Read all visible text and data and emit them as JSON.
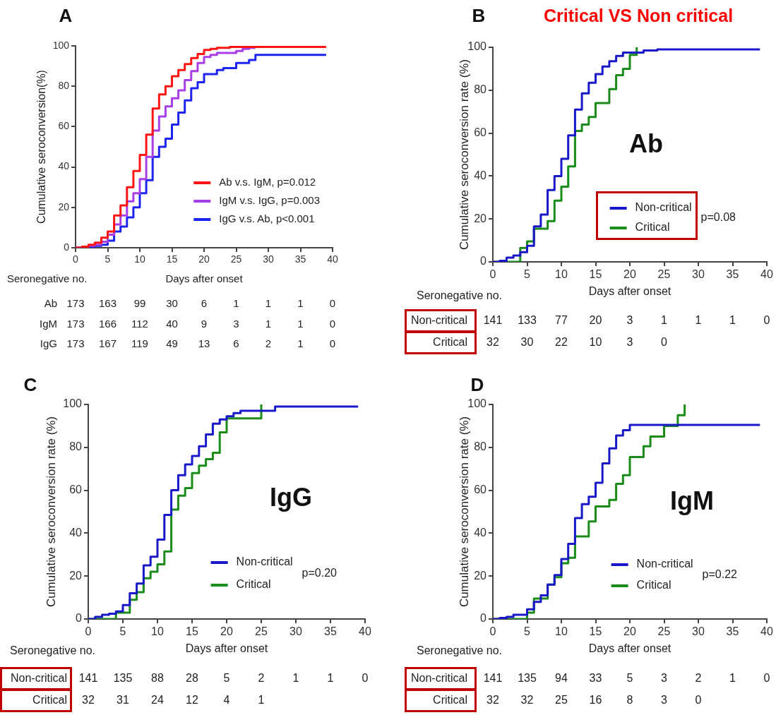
{
  "chart_data": [
    {
      "type": "step",
      "title": "A",
      "xlabel": "Days after onset",
      "ylabel": "Cumulative seroconversion(%)",
      "xlim": [
        0,
        40
      ],
      "xticks": [
        0,
        5,
        10,
        15,
        20,
        25,
        30,
        35,
        40
      ],
      "ylim": [
        0,
        100
      ],
      "yticks": [
        0,
        20,
        40,
        60,
        80,
        100
      ],
      "legend": "bottom right",
      "series": [
        {
          "name": "Ab v.s. IgM, p=0.012",
          "color": "#ff1414",
          "x": [
            0,
            1,
            2,
            3,
            4,
            5,
            6,
            7,
            8,
            9,
            10,
            11,
            12,
            13,
            14,
            15,
            16,
            17,
            18,
            19,
            20,
            21,
            22,
            24,
            39
          ],
          "values": [
            0,
            0.5,
            1.5,
            2.5,
            5,
            8,
            16,
            21,
            30,
            38,
            46,
            56,
            69,
            76,
            80,
            85,
            88,
            91,
            94,
            96,
            98,
            98.5,
            99,
            99.5,
            99.5
          ]
        },
        {
          "name": "IgM v.s. IgG, p=0.003",
          "color": "#a83ee6",
          "x": [
            0,
            1,
            2,
            3,
            4,
            5,
            6,
            7,
            8,
            9,
            10,
            11,
            12,
            13,
            14,
            15,
            16,
            17,
            18,
            19,
            20,
            21,
            22,
            25,
            26,
            27,
            28
          ],
          "values": [
            0,
            0.5,
            1,
            1.5,
            3,
            6.5,
            11.5,
            16,
            23,
            27,
            34,
            45,
            58,
            65,
            70,
            74,
            78,
            83,
            87.5,
            91.5,
            94.5,
            95.5,
            96.5,
            97.5,
            98.5,
            99,
            99
          ]
        },
        {
          "name": "IgG v.s. Ab, p<0.001",
          "color": "#1e24f0",
          "x": [
            0,
            2,
            3,
            4,
            5,
            6,
            7,
            8,
            9,
            10,
            11,
            12,
            13,
            14,
            15,
            16,
            17,
            18,
            19,
            20,
            22,
            23,
            25,
            27,
            28,
            39
          ],
          "values": [
            0,
            0.5,
            1,
            1.5,
            3.5,
            8,
            10.5,
            15,
            20,
            27,
            33.5,
            45,
            50,
            54,
            61,
            67,
            73,
            79,
            82,
            86,
            88,
            89,
            91.5,
            93,
            95.5,
            95.5
          ]
        }
      ],
      "annotations": [
        "Seronegative no.",
        "Ab 173 163 99 30 6 1 1 1 0",
        "IgM 173 166 112 40 9 3 1 1 0",
        "IgG 173 167 119 49 13 6 2 1 0"
      ]
    },
    {
      "type": "step",
      "title": "B",
      "subtitle": "Critical VS Non critical",
      "xlabel": "Days after onset",
      "ylabel": "Cumulative seroconversion rate (%)",
      "xlim": [
        0,
        40
      ],
      "xticks": [
        0,
        5,
        10,
        15,
        20,
        25,
        30,
        35,
        40
      ],
      "ylim": [
        0,
        100
      ],
      "yticks": [
        0,
        20,
        40,
        60,
        80,
        100
      ],
      "legend": "bottom right",
      "series": [
        {
          "name": "Non-critical",
          "color": "#1818c8",
          "x": [
            0,
            1,
            2,
            3,
            4,
            5,
            6,
            7,
            8,
            9,
            10,
            11,
            12,
            13,
            14,
            15,
            16,
            17,
            18,
            19,
            22,
            24,
            39
          ],
          "values": [
            0,
            0.5,
            2,
            3,
            4.5,
            7.5,
            16.5,
            22,
            33.5,
            40,
            48,
            59,
            71,
            78.5,
            83.5,
            87.5,
            91,
            93.5,
            96,
            97.5,
            98.5,
            99,
            99
          ]
        },
        {
          "name": "Critical",
          "color": "#1a8c1a",
          "x": [
            0,
            4,
            5,
            6,
            8,
            9,
            10,
            11,
            12,
            13,
            14,
            15,
            17,
            18,
            19,
            20,
            21
          ],
          "values": [
            0,
            6.5,
            9.5,
            15.5,
            19,
            28.5,
            35,
            44.5,
            61,
            64,
            67.5,
            74,
            80.5,
            87,
            90,
            96.5,
            100
          ]
        }
      ],
      "annotations": [
        "Ab",
        "p=0.08",
        "Seronegative no.",
        "Non-critical 141 133 77 20 3 1 1 1 0",
        "Critical 32 30 22 10 3 0"
      ]
    },
    {
      "type": "step",
      "title": "C",
      "xlabel": "Days after onset",
      "ylabel": "Cumulative seroconversion rate (%)",
      "xlim": [
        0,
        40
      ],
      "xticks": [
        0,
        5,
        10,
        15,
        20,
        25,
        30,
        35,
        40
      ],
      "ylim": [
        0,
        100
      ],
      "yticks": [
        0,
        20,
        40,
        60,
        80,
        100
      ],
      "legend": "bottom right",
      "series": [
        {
          "name": "Non-critical",
          "color": "#1818c8",
          "x": [
            0,
            1,
            2,
            3,
            4,
            5,
            6,
            7,
            8,
            9,
            10,
            11,
            12,
            13,
            14,
            15,
            16,
            17,
            18,
            19,
            20,
            21,
            22,
            27,
            39
          ],
          "values": [
            0,
            1,
            2,
            2.5,
            3.5,
            6.5,
            12,
            16.5,
            25,
            29,
            37,
            48.5,
            60,
            67,
            72,
            76,
            80.5,
            86,
            91,
            93,
            94.5,
            96,
            97,
            99,
            99
          ]
        },
        {
          "name": "Critical",
          "color": "#1a8c1a",
          "x": [
            0,
            4,
            6,
            7,
            8,
            9,
            10,
            11,
            12,
            13,
            14,
            15,
            16,
            17,
            18,
            19,
            20,
            25
          ],
          "values": [
            0,
            3,
            9,
            12.5,
            19,
            22,
            25.5,
            31.5,
            51,
            57.5,
            61,
            68,
            71.5,
            74.5,
            77.5,
            87,
            93.5,
            100
          ]
        }
      ],
      "annotations": [
        "IgG",
        "p=0.20",
        "Seronegative no.",
        "Non-critical 141 135 88 28 5 2 1 1 0",
        "Critical 32 31 24 12 4 1"
      ]
    },
    {
      "type": "step",
      "title": "D",
      "xlabel": "Days after onset",
      "ylabel": "Cumulative seroconversion rate (%)",
      "xlim": [
        0,
        40
      ],
      "xticks": [
        0,
        5,
        10,
        15,
        20,
        25,
        30,
        35,
        40
      ],
      "ylim": [
        0,
        100
      ],
      "yticks": [
        0,
        20,
        40,
        60,
        80,
        100
      ],
      "legend": "bottom right",
      "series": [
        {
          "name": "Non-critical",
          "color": "#1818c8",
          "x": [
            0,
            1,
            2,
            3,
            5,
            6,
            7,
            8,
            9,
            10,
            11,
            12,
            13,
            14,
            15,
            16,
            17,
            18,
            19,
            20,
            39
          ],
          "values": [
            0,
            0.5,
            1,
            2,
            4.5,
            8,
            11,
            16,
            20.5,
            28,
            35,
            47,
            53.5,
            57,
            63.5,
            72.5,
            79.5,
            85.5,
            88,
            90.5,
            90.5
          ]
        },
        {
          "name": "Critical",
          "color": "#1a8c1a",
          "x": [
            0,
            5,
            6,
            8,
            9,
            10,
            11,
            12,
            14,
            15,
            17,
            18,
            19,
            20,
            22,
            23,
            25,
            27,
            28
          ],
          "values": [
            0,
            3,
            9.5,
            16,
            19.5,
            26,
            28.5,
            38.5,
            45.5,
            52.5,
            55.5,
            63,
            67,
            75.5,
            80.5,
            85,
            90,
            95,
            100
          ]
        }
      ],
      "annotations": [
        "IgM",
        "p=0.22",
        "Seronegative no.",
        "Non-critical 141 135 94 33 5 3 2 1 0",
        "Critical 32 32 25 16 8 3 0"
      ]
    }
  ]
}
